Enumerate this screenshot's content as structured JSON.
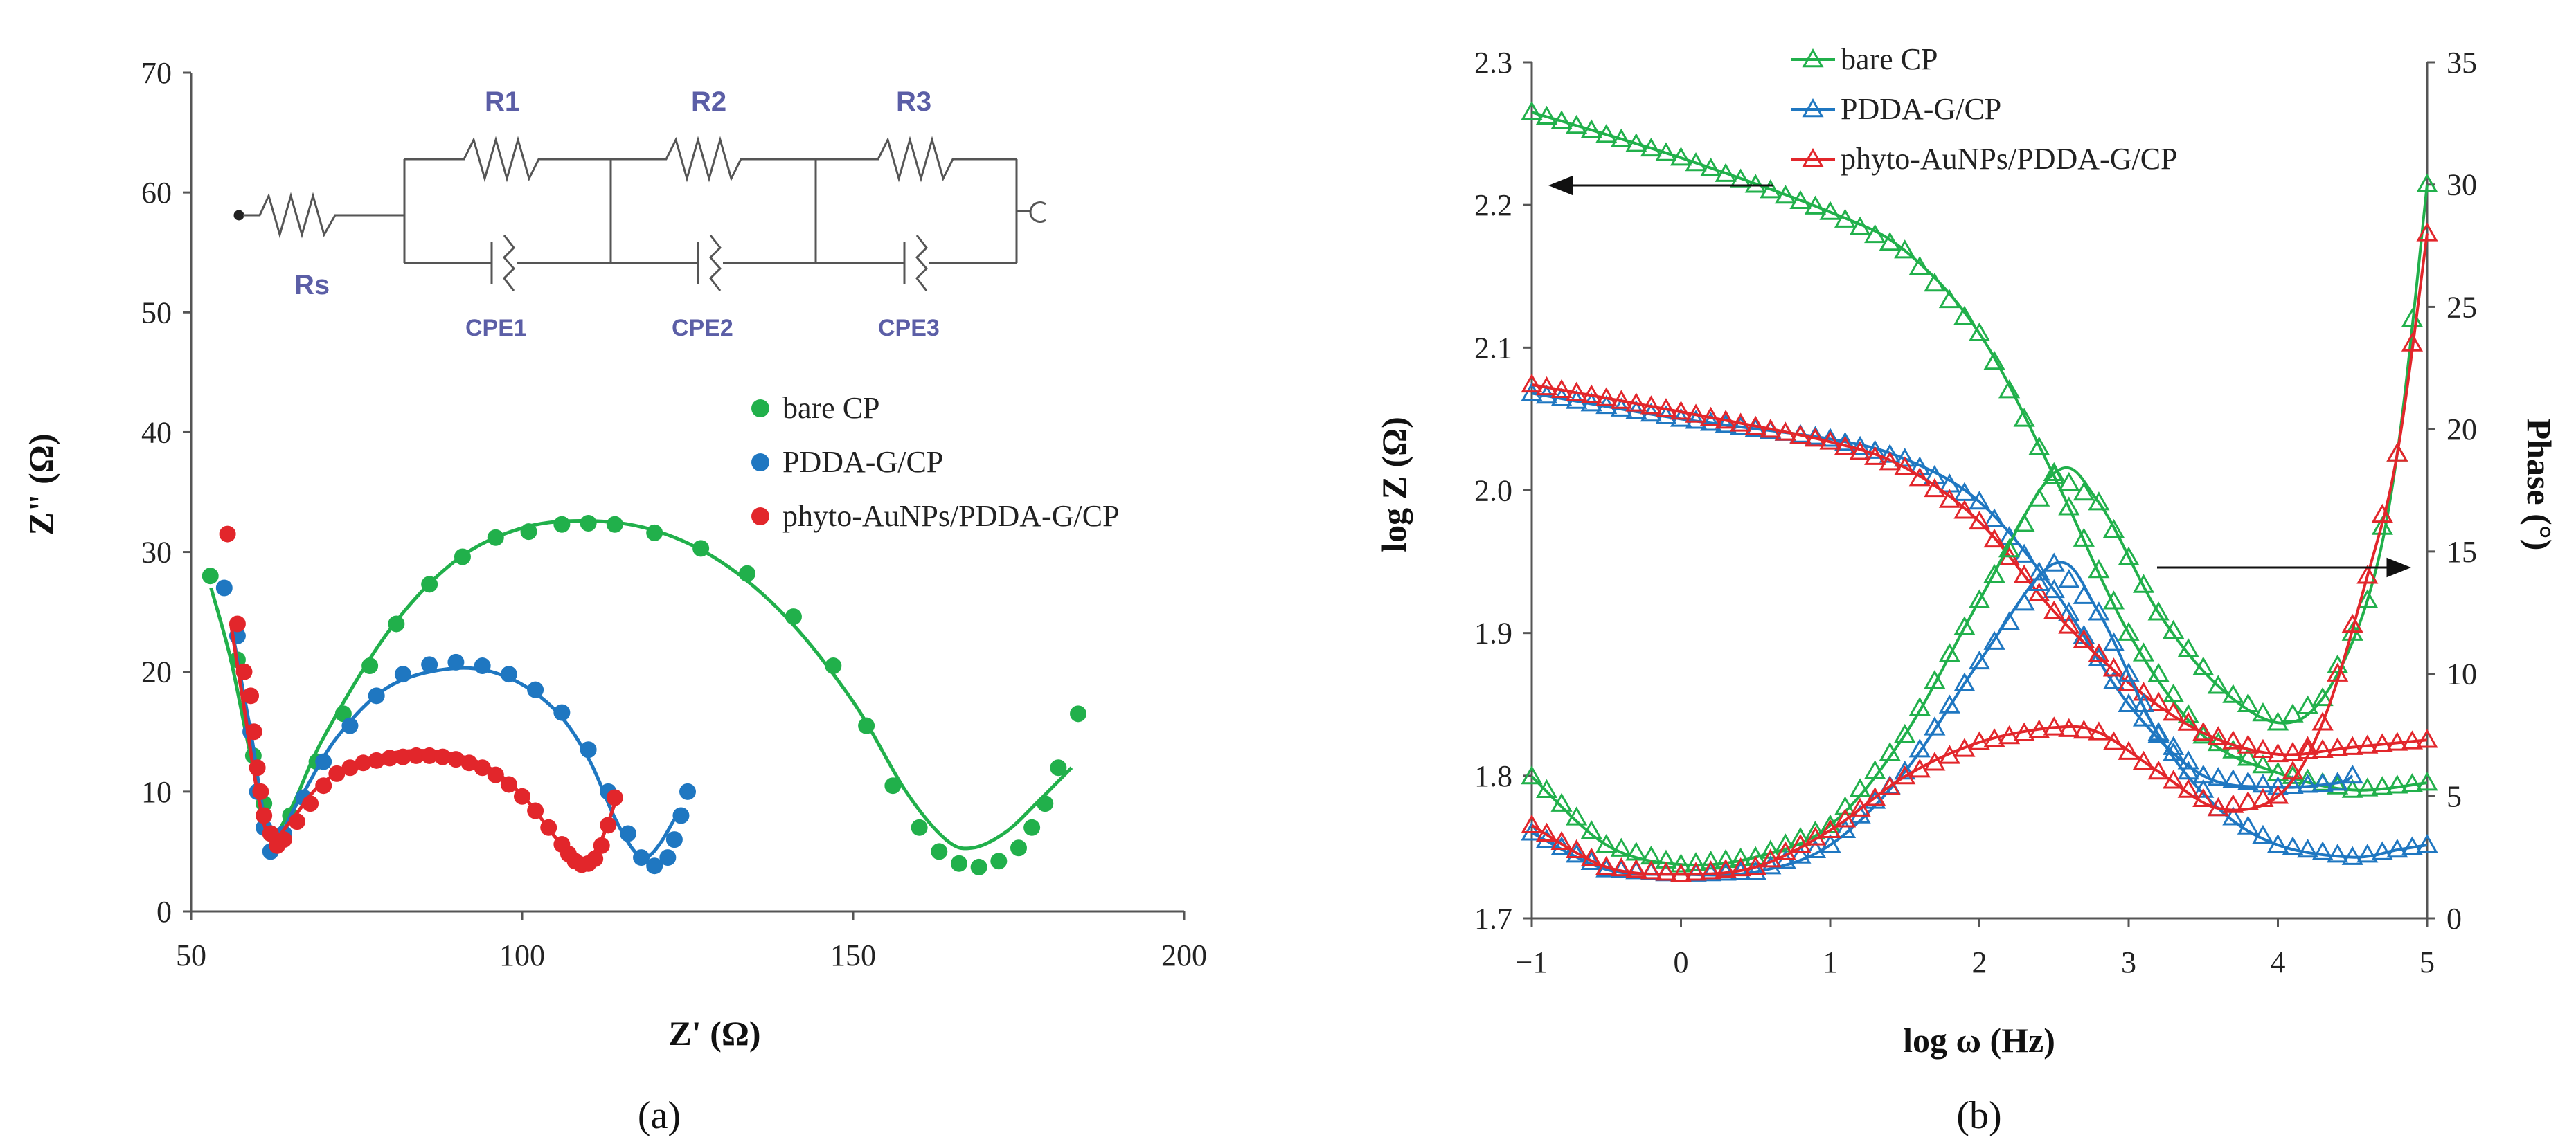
{
  "colors": {
    "green": "#21b04b",
    "blue": "#1f77c1",
    "red": "#e2262b",
    "axis": "#555555",
    "circuit_label": "#5b5ea6"
  },
  "chart_data": [
    {
      "type": "scatter",
      "panel_label": "(a)",
      "title": "",
      "xlabel": "Z' (Ω)",
      "ylabel": "Z\" (Ω)",
      "xlim": [
        50,
        200
      ],
      "ylim": [
        0,
        70
      ],
      "xticks": [
        50,
        100,
        150,
        200
      ],
      "yticks": [
        0,
        10,
        20,
        30,
        40,
        50,
        60,
        70
      ],
      "legend": [
        "bare CP",
        "PDDA-G/CP",
        "phyto-AuNPs/PDDA-G/CP"
      ],
      "legend_position": "middle-right",
      "circuit": {
        "rs": "Rs",
        "resistors": [
          "R1",
          "R2",
          "R3"
        ],
        "cpes": [
          "CPE1",
          "CPE2",
          "CPE3"
        ]
      },
      "series": [
        {
          "name": "bare CP",
          "color": "green",
          "points": [
            [
              52.9,
              28
            ],
            [
              57,
              21
            ],
            [
              59.4,
              13
            ],
            [
              61,
              9
            ],
            [
              62,
              6.5
            ],
            [
              65,
              8
            ],
            [
              69,
              12.5
            ],
            [
              73,
              16.5
            ],
            [
              77,
              20.5
            ],
            [
              81,
              24
            ],
            [
              86,
              27.3
            ],
            [
              91,
              29.6
            ],
            [
              96,
              31.2
            ],
            [
              101,
              31.7
            ],
            [
              106,
              32.3
            ],
            [
              110,
              32.4
            ],
            [
              114,
              32.3
            ],
            [
              120,
              31.6
            ],
            [
              127,
              30.3
            ],
            [
              134,
              28.2
            ],
            [
              141,
              24.6
            ],
            [
              147,
              20.5
            ],
            [
              152,
              15.5
            ],
            [
              156,
              10.5
            ],
            [
              160,
              7
            ],
            [
              163,
              5
            ],
            [
              166,
              4
            ],
            [
              169,
              3.7
            ],
            [
              172,
              4.2
            ],
            [
              175,
              5.3
            ],
            [
              177,
              7
            ],
            [
              179,
              9
            ],
            [
              181,
              12
            ],
            [
              184,
              16.5
            ]
          ],
          "fit": [
            [
              53,
              27
            ],
            [
              56,
              21
            ],
            [
              59,
              13
            ],
            [
              62,
              6.8
            ],
            [
              65,
              8.5
            ],
            [
              70,
              14.5
            ],
            [
              80,
              23.5
            ],
            [
              90,
              29.3
            ],
            [
              100,
              32
            ],
            [
              110,
              32.6
            ],
            [
              120,
              31.8
            ],
            [
              130,
              29.2
            ],
            [
              140,
              24.5
            ],
            [
              150,
              17.5
            ],
            [
              158,
              10
            ],
            [
              164,
              6
            ],
            [
              168,
              5.3
            ],
            [
              173,
              6.6
            ],
            [
              178,
              9.2
            ],
            [
              183,
              12
            ]
          ]
        },
        {
          "name": "PDDA-G/CP",
          "color": "blue",
          "points": [
            [
              55,
              27
            ],
            [
              57,
              23
            ],
            [
              59,
              15
            ],
            [
              60,
              10
            ],
            [
              61,
              7
            ],
            [
              62,
              5
            ],
            [
              64,
              6.5
            ],
            [
              67,
              9.5
            ],
            [
              70,
              12.5
            ],
            [
              74,
              15.5
            ],
            [
              78,
              18
            ],
            [
              82,
              19.8
            ],
            [
              86,
              20.6
            ],
            [
              90,
              20.8
            ],
            [
              94,
              20.5
            ],
            [
              98,
              19.8
            ],
            [
              102,
              18.5
            ],
            [
              106,
              16.6
            ],
            [
              110,
              13.5
            ],
            [
              113,
              10
            ],
            [
              116,
              6.5
            ],
            [
              118,
              4.5
            ],
            [
              120,
              3.8
            ],
            [
              122,
              4.5
            ],
            [
              123,
              6
            ],
            [
              124,
              8
            ],
            [
              125,
              10
            ]
          ],
          "fit": [
            [
              56,
              24
            ],
            [
              59,
              15
            ],
            [
              62,
              6
            ],
            [
              66,
              9
            ],
            [
              72,
              14.5
            ],
            [
              80,
              18.8
            ],
            [
              90,
              20.3
            ],
            [
              98,
              19.5
            ],
            [
              105,
              16.8
            ],
            [
              110,
              12.8
            ],
            [
              114,
              7.8
            ],
            [
              117,
              5
            ],
            [
              119,
              4.6
            ],
            [
              121,
              5.8
            ],
            [
              123,
              7.7
            ]
          ]
        },
        {
          "name": "phyto-AuNPs/PDDA-G/CP",
          "color": "red",
          "points": [
            [
              55.5,
              31.5
            ],
            [
              57,
              24
            ],
            [
              58,
              20
            ],
            [
              59,
              18
            ],
            [
              59.5,
              15
            ],
            [
              60,
              12
            ],
            [
              60.5,
              10
            ],
            [
              61,
              8
            ],
            [
              62,
              6.5
            ],
            [
              63,
              5.5
            ],
            [
              64,
              6
            ],
            [
              66,
              7.5
            ],
            [
              68,
              9
            ],
            [
              70,
              10.5
            ],
            [
              72,
              11.5
            ],
            [
              74,
              12
            ],
            [
              76,
              12.4
            ],
            [
              78,
              12.6
            ],
            [
              80,
              12.8
            ],
            [
              82,
              12.9
            ],
            [
              84,
              13
            ],
            [
              86,
              13
            ],
            [
              88,
              12.9
            ],
            [
              90,
              12.7
            ],
            [
              92,
              12.4
            ],
            [
              94,
              12
            ],
            [
              96,
              11.4
            ],
            [
              98,
              10.6
            ],
            [
              100,
              9.6
            ],
            [
              102,
              8.4
            ],
            [
              104,
              7
            ],
            [
              106,
              5.6
            ],
            [
              107,
              4.8
            ],
            [
              108,
              4.2
            ],
            [
              109,
              3.9
            ],
            [
              110,
              4
            ],
            [
              111,
              4.4
            ],
            [
              112,
              5.5
            ],
            [
              113,
              7.2
            ],
            [
              114,
              9.5
            ]
          ],
          "fit": [
            [
              56,
              24
            ],
            [
              58,
              17
            ],
            [
              60,
              10
            ],
            [
              62,
              6
            ],
            [
              65,
              7.5
            ],
            [
              70,
              10.8
            ],
            [
              78,
              12.9
            ],
            [
              86,
              13.4
            ],
            [
              94,
              12.3
            ],
            [
              100,
              9.7
            ],
            [
              105,
              6.2
            ],
            [
              108,
              4.4
            ],
            [
              110,
              4.4
            ],
            [
              112,
              6
            ],
            [
              114,
              9
            ]
          ]
        }
      ]
    },
    {
      "type": "line",
      "panel_label": "(b)",
      "title": "",
      "xlabel": "log ω (Hz)",
      "ylabel": "log Z (Ω)",
      "y2label": "Phase (°)",
      "xlim": [
        -1,
        5
      ],
      "ylim": [
        1.7,
        2.3
      ],
      "y2lim": [
        0,
        35
      ],
      "xticks": [
        "−1",
        "0",
        "1",
        "2",
        "3",
        "4",
        "5"
      ],
      "yticks": [
        "1.7",
        "1.8",
        "1.9",
        "2.0",
        "2.1",
        "2.2",
        "2.3"
      ],
      "y2ticks": [
        "0",
        "5",
        "10",
        "15",
        "20",
        "25",
        "30",
        "35"
      ],
      "legend": [
        "bare CP",
        "PDDA-G/CP",
        "phyto-AuNPs/PDDA-G/CP"
      ],
      "legend_position": "top-center",
      "marker": "open-triangle",
      "logZ": [
        {
          "name": "bare CP",
          "color": "green",
          "points": [
            [
              -1,
              2.265
            ],
            [
              0,
              2.233
            ],
            [
              1,
              2.195
            ],
            [
              1.5,
              2.168
            ],
            [
              2,
              2.11
            ],
            [
              2.5,
              2.01
            ],
            [
              3,
              1.9
            ],
            [
              3.5,
              1.828
            ],
            [
              4,
              1.802
            ],
            [
              4.5,
              1.79
            ],
            [
              5,
              1.795
            ]
          ]
        },
        {
          "name": "PDDA-G/CP",
          "color": "blue",
          "points": [
            [
              -1,
              2.068
            ],
            [
              0,
              2.05
            ],
            [
              1,
              2.036
            ],
            [
              1.5,
              2.022
            ],
            [
              2,
              1.992
            ],
            [
              2.5,
              1.93
            ],
            [
              3,
              1.85
            ],
            [
              3.5,
              1.8
            ],
            [
              4,
              1.792
            ],
            [
              4.4,
              1.795
            ],
            [
              4.5,
              1.8
            ]
          ]
        },
        {
          "name": "phyto-AuNPs/PDDA-G/CP",
          "color": "red",
          "points": [
            [
              -1,
              2.074
            ],
            [
              0,
              2.055
            ],
            [
              1,
              2.034
            ],
            [
              1.5,
              2.016
            ],
            [
              2,
              1.978
            ],
            [
              2.5,
              1.915
            ],
            [
              3,
              1.865
            ],
            [
              3.5,
              1.83
            ],
            [
              4,
              1.815
            ],
            [
              4.5,
              1.82
            ],
            [
              5,
              1.825
            ]
          ]
        }
      ],
      "phase": [
        {
          "name": "bare CP",
          "color": "green",
          "points": [
            [
              -1,
              5.8
            ],
            [
              -0.5,
              3
            ],
            [
              0,
              2.2
            ],
            [
              0.5,
              2.5
            ],
            [
              1,
              3.8
            ],
            [
              1.5,
              7.5
            ],
            [
              2,
              13
            ],
            [
              2.5,
              18.2
            ],
            [
              2.8,
              17
            ],
            [
              3.2,
              12.5
            ],
            [
              3.6,
              9.5
            ],
            [
              4,
              8
            ],
            [
              4.3,
              9
            ],
            [
              4.6,
              13
            ],
            [
              4.8,
              19
            ],
            [
              5,
              30
            ]
          ]
        },
        {
          "name": "PDDA-G/CP",
          "color": "blue",
          "points": [
            [
              -1,
              3.5
            ],
            [
              -0.5,
              2
            ],
            [
              0,
              1.8
            ],
            [
              0.5,
              1.9
            ],
            [
              1,
              3
            ],
            [
              1.5,
              6
            ],
            [
              2,
              10.5
            ],
            [
              2.5,
              14.5
            ],
            [
              2.8,
              12.5
            ],
            [
              3.2,
              7.5
            ],
            [
              3.6,
              4.5
            ],
            [
              4,
              3
            ],
            [
              4.5,
              2.5
            ],
            [
              4.8,
              2.8
            ],
            [
              5,
              3
            ]
          ]
        },
        {
          "name": "phyto-AuNPs/PDDA-G/CP",
          "color": "red",
          "points": [
            [
              -1,
              3.8
            ],
            [
              -0.5,
              2.1
            ],
            [
              0,
              1.8
            ],
            [
              0.5,
              2.1
            ],
            [
              1,
              3.6
            ],
            [
              1.5,
              5.8
            ],
            [
              2,
              7.2
            ],
            [
              2.5,
              7.8
            ],
            [
              2.8,
              7.6
            ],
            [
              3.2,
              6
            ],
            [
              3.6,
              4.5
            ],
            [
              4,
              5
            ],
            [
              4.3,
              8
            ],
            [
              4.6,
              14
            ],
            [
              4.8,
              19
            ],
            [
              5,
              28
            ]
          ]
        }
      ],
      "annotations": [
        "left-arrow-to-logZ-axis",
        "right-arrow-to-phase-axis"
      ]
    }
  ]
}
